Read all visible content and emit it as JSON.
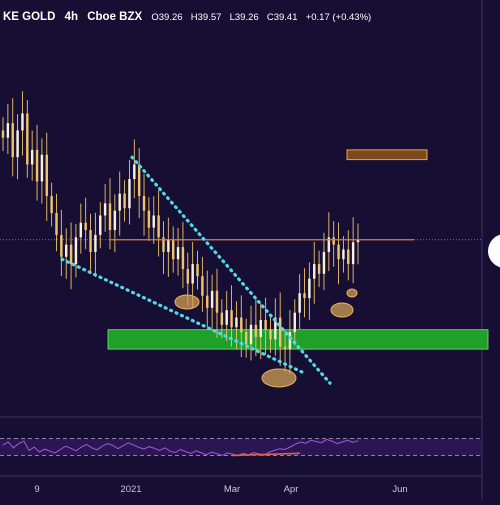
{
  "header": {
    "symbol": "KE GOLD",
    "interval": "4h",
    "exchange": "Cboe BZX",
    "ohlc": {
      "open": "O39.26",
      "high": "H39.57",
      "low": "L39.26",
      "close": "C39.41",
      "change": "+0.17 (+0.43%)"
    }
  },
  "colors": {
    "background": "#170f33",
    "candle": "#f0c36b",
    "resistance": "#e07a4e",
    "support_zone": "#1fa02a",
    "target_zone": "#7a4a1c",
    "trendline": "#56d7e8",
    "highlight": "#d2a056",
    "rsi_line": "#a555e0",
    "rsi_band": "#3a1f6a",
    "rsi_trend": "#e0604a",
    "header_text": "#ffffff",
    "axis_text": "#c8c8d8"
  },
  "chart_data": {
    "type": "candlestick",
    "xlabels": [
      "9",
      "2021",
      "Mar",
      "Apr",
      "Jun"
    ],
    "close_path": [
      43.6,
      44.2,
      42.8,
      43.9,
      44.6,
      42.5,
      43.1,
      41.8,
      42.9,
      41.2,
      40.5,
      39.6,
      38.7,
      39.2,
      38.4,
      39.5,
      40.1,
      39.8,
      38.9,
      39.6,
      40.4,
      40.9,
      39.8,
      40.6,
      41.3,
      40.7,
      41.9,
      42.5,
      41.2,
      40.6,
      39.9,
      40.4,
      39.5,
      38.9,
      39.4,
      38.6,
      39.1,
      38.2,
      37.6,
      38.4,
      37.9,
      37.1,
      36.6,
      37.3,
      36.4,
      35.9,
      36.5,
      35.8,
      36.2,
      35.6,
      35.1,
      35.9,
      35.4,
      36.1,
      35.7,
      35.3,
      36.2,
      35.0,
      34.9,
      35.6,
      36.4,
      37.2,
      37.0,
      37.8,
      38.4,
      38.0,
      38.9,
      39.5,
      39.2,
      38.6,
      39.0,
      38.4,
      39.3,
      39.4
    ],
    "resistance_level": 39.4,
    "support_zone": [
      34.9,
      35.7
    ],
    "target_zone": [
      42.7,
      43.1
    ],
    "descending_trendline": [
      [
        132,
        42.8
      ],
      [
        330,
        33.5
      ]
    ],
    "lower_trendline": [
      [
        62,
        38.6
      ],
      [
        305,
        33.9
      ]
    ],
    "rsi_path": [
      55,
      62,
      48,
      58,
      64,
      42,
      50,
      38,
      45,
      40,
      36,
      44,
      52,
      47,
      41,
      50,
      56,
      48,
      43,
      52,
      58,
      54,
      46,
      53,
      60,
      55,
      49,
      45,
      51,
      47,
      42,
      48,
      40,
      37,
      44,
      39,
      35,
      41,
      36,
      32,
      38,
      34,
      30,
      36,
      33,
      29,
      35,
      31,
      37,
      34,
      30,
      38,
      42,
      46,
      44,
      50,
      57,
      62,
      59,
      66,
      63,
      60,
      68,
      64,
      58,
      62,
      66,
      61,
      65
    ],
    "rsi_bands": [
      30,
      70
    ],
    "rsi_trend": [
      [
        232,
        30
      ],
      [
        300,
        35
      ]
    ]
  }
}
